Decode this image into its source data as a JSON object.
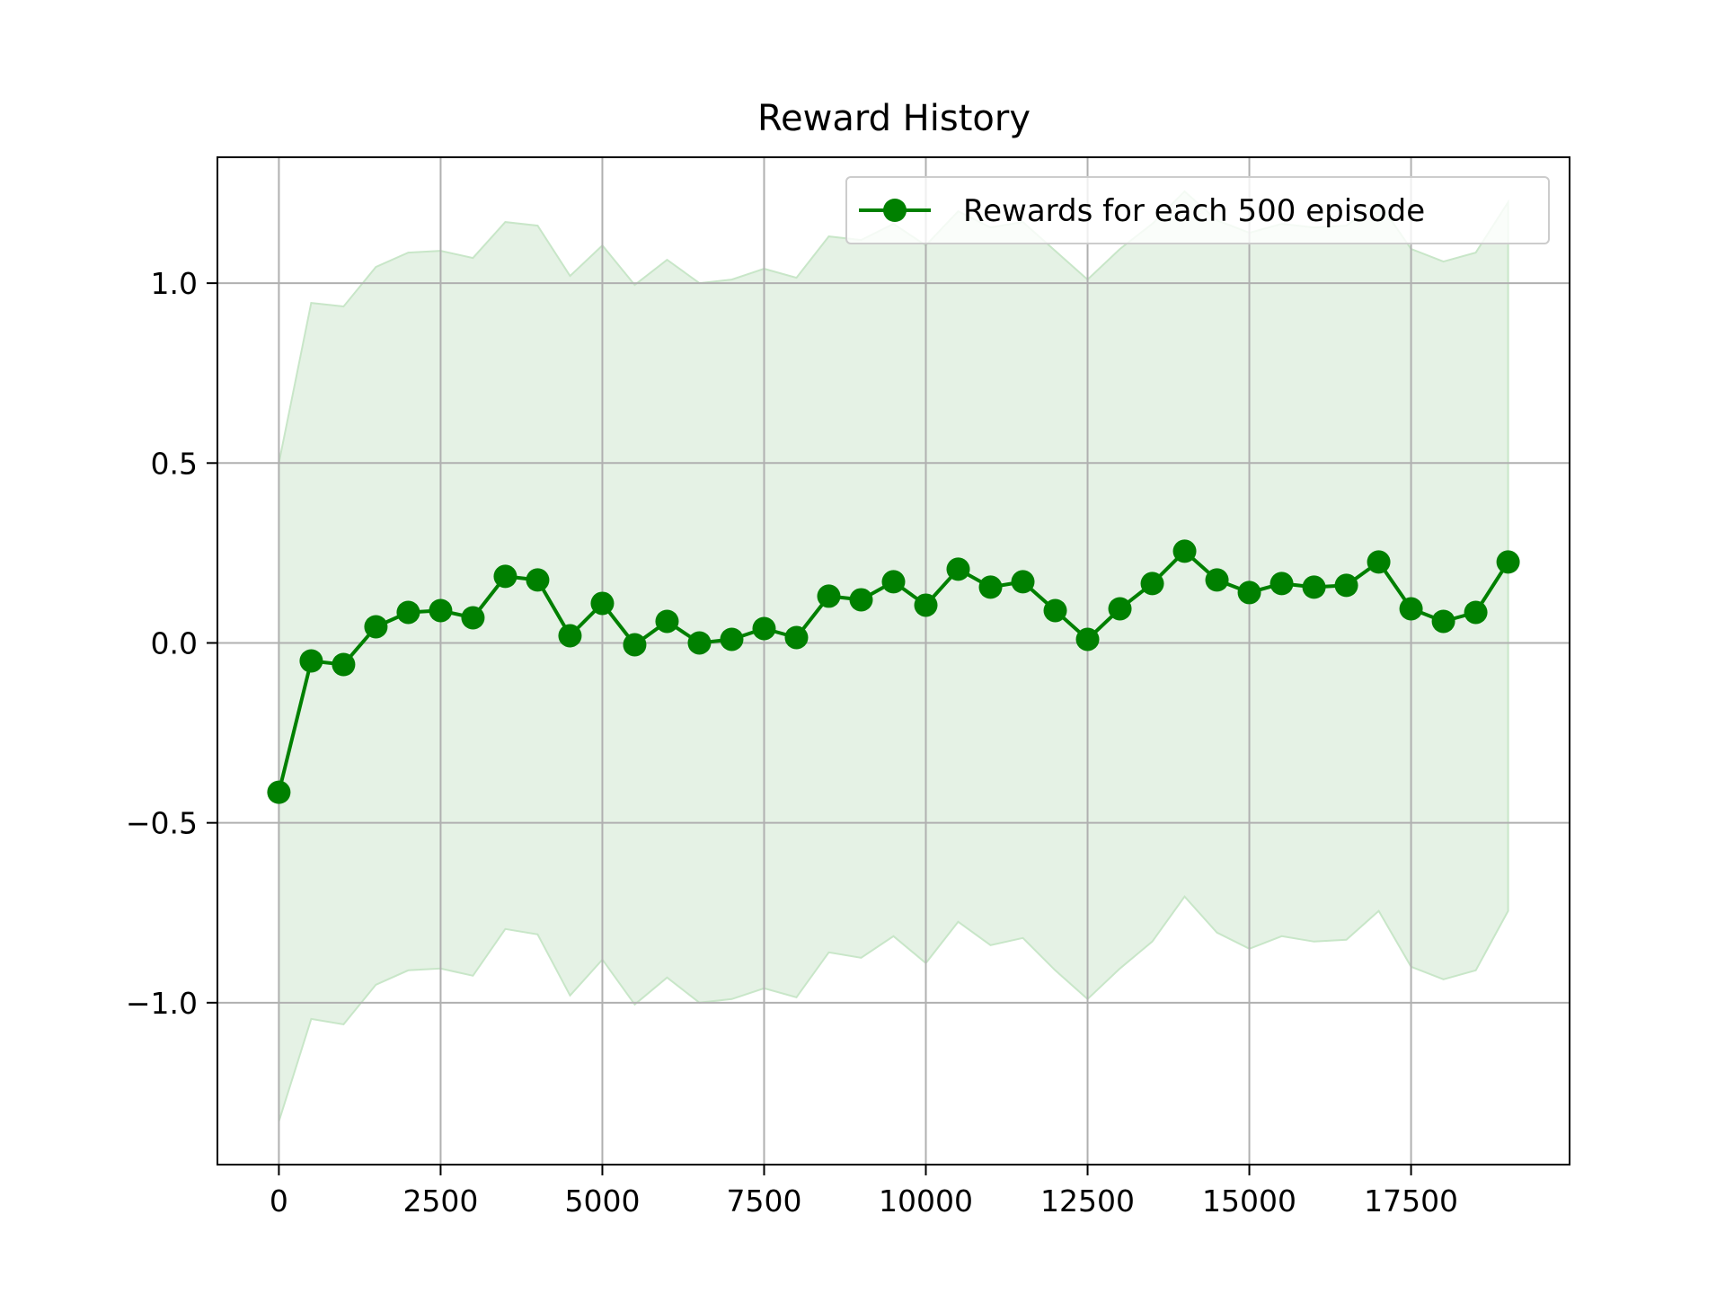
{
  "chart_data": {
    "type": "line",
    "title": "Reward History",
    "xlabel": "",
    "ylabel": "",
    "xlim": [
      -950,
      19950
    ],
    "ylim": [
      -1.45,
      1.35
    ],
    "grid": true,
    "legend_position": "top-right",
    "line_color": "#008000",
    "band_color": "#e5f2e5",
    "x_ticks": [
      0,
      2500,
      5000,
      7500,
      10000,
      12500,
      15000,
      17500
    ],
    "x_tick_labels": [
      "0",
      "2500",
      "5000",
      "7500",
      "10000",
      "12500",
      "15000",
      "17500"
    ],
    "y_ticks": [
      1.0,
      0.5,
      0.0,
      -0.5,
      -1.0
    ],
    "y_tick_labels": [
      "1.0",
      "0.5",
      "0.0",
      "−0.5",
      "−1.0"
    ],
    "x": [
      0,
      500,
      1000,
      1500,
      2000,
      2500,
      3000,
      3500,
      4000,
      4500,
      5000,
      5500,
      6000,
      6500,
      7000,
      7500,
      8000,
      8500,
      9000,
      9500,
      10000,
      10500,
      11000,
      11500,
      12000,
      12500,
      13000,
      13500,
      14000,
      14500,
      15000,
      15500,
      16000,
      16500,
      17000,
      17500,
      18000,
      18500,
      19000
    ],
    "series": [
      {
        "name": "Rewards for each 500 episode",
        "values": [
          -0.415,
          -0.05,
          -0.06,
          0.045,
          0.085,
          0.09,
          0.07,
          0.185,
          0.175,
          0.02,
          0.11,
          -0.005,
          0.06,
          0.0,
          0.01,
          0.04,
          0.015,
          0.13,
          0.12,
          0.17,
          0.105,
          0.205,
          0.155,
          0.17,
          0.09,
          0.01,
          0.095,
          0.165,
          0.255,
          0.175,
          0.14,
          0.165,
          0.155,
          0.16,
          0.225,
          0.095,
          0.06,
          0.085,
          0.225
        ],
        "upper": [
          0.5,
          0.945,
          0.935,
          1.045,
          1.085,
          1.09,
          1.07,
          1.17,
          1.16,
          1.02,
          1.105,
          0.995,
          1.065,
          1.0,
          1.01,
          1.04,
          1.015,
          1.13,
          1.12,
          1.165,
          1.105,
          1.2,
          1.155,
          1.17,
          1.09,
          1.01,
          1.095,
          1.165,
          1.255,
          1.175,
          1.14,
          1.165,
          1.155,
          1.16,
          1.225,
          1.095,
          1.06,
          1.085,
          1.225
        ],
        "lower": [
          -1.33,
          -1.045,
          -1.06,
          -0.95,
          -0.91,
          -0.905,
          -0.925,
          -0.795,
          -0.81,
          -0.98,
          -0.88,
          -1.005,
          -0.93,
          -1.0,
          -0.99,
          -0.96,
          -0.985,
          -0.86,
          -0.875,
          -0.815,
          -0.89,
          -0.775,
          -0.84,
          -0.82,
          -0.91,
          -0.99,
          -0.905,
          -0.83,
          -0.705,
          -0.805,
          -0.85,
          -0.815,
          -0.83,
          -0.825,
          -0.745,
          -0.9,
          -0.935,
          -0.91,
          -0.745
        ]
      }
    ]
  }
}
